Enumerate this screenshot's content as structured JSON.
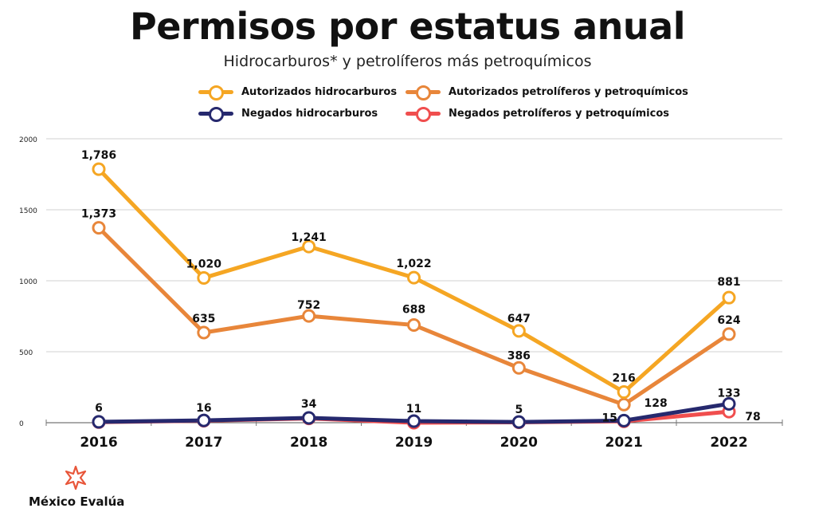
{
  "title": "Permisos por estatus anual",
  "subtitle": "Hidrocarburos* y petrolíferos más petroquímicos",
  "logo_text": "México Evalúa",
  "chart_data": {
    "type": "line",
    "categories": [
      "2016",
      "2017",
      "2018",
      "2019",
      "2020",
      "2021",
      "2022"
    ],
    "ylim": [
      0,
      2000
    ],
    "yticks": [
      0,
      500,
      1000,
      1500,
      2000
    ],
    "grid": true,
    "legend_position": "top",
    "series": [
      {
        "name": "Autorizados hidrocarburos",
        "color": "#F5A623",
        "values": [
          1786,
          1020,
          1241,
          1022,
          647,
          216,
          881
        ],
        "labels": [
          "1,786",
          "1,020",
          "1,241",
          "1,022",
          "647",
          "216",
          "881"
        ]
      },
      {
        "name": "Autorizados petrolíferos y petroquímicos",
        "color": "#E8863A",
        "values": [
          1373,
          635,
          752,
          688,
          386,
          128,
          624
        ],
        "labels": [
          "1,373",
          "635",
          "752",
          "688",
          "386",
          "128",
          "624"
        ]
      },
      {
        "name": "Negados hidrocarburos",
        "color": "#26296E",
        "values": [
          6,
          16,
          34,
          11,
          5,
          15,
          133
        ],
        "labels": [
          "6",
          "16",
          "34",
          "11",
          "5",
          "15",
          "133"
        ]
      },
      {
        "name": "Negados petrolíferos y petroquímicos",
        "color": "#F04E4E",
        "values": [
          4,
          14,
          30,
          0,
          3,
          10,
          78
        ],
        "labels": [
          "",
          "",
          "",
          "",
          "",
          "",
          "78"
        ]
      }
    ]
  }
}
